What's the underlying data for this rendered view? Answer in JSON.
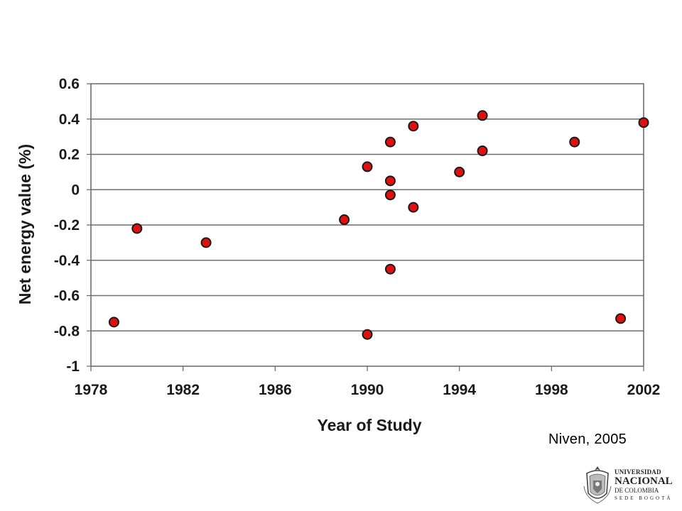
{
  "citation": "Niven, 2005",
  "logo": {
    "line1": "UNIVERSIDAD",
    "line2": "NACIONAL",
    "line3": "DE COLOMBIA",
    "line4": "SEDE BOGOTÁ"
  },
  "chart_data": {
    "type": "scatter",
    "title": "",
    "xlabel": "Year of Study",
    "ylabel": "Net energy value (%)",
    "xlim": [
      1978,
      2002
    ],
    "ylim": [
      -1,
      0.6
    ],
    "x_ticks": [
      1978,
      1982,
      1986,
      1990,
      1994,
      1998,
      2002
    ],
    "y_ticks": [
      0.6,
      0.4,
      0.2,
      0,
      -0.2,
      -0.4,
      -0.6,
      -0.8,
      -1
    ],
    "grid": "horizontal",
    "marker_color": "#e01010",
    "points": [
      {
        "x": 1979.0,
        "y": -0.75
      },
      {
        "x": 1980.0,
        "y": -0.22
      },
      {
        "x": 1983.0,
        "y": -0.3
      },
      {
        "x": 1989.0,
        "y": -0.17
      },
      {
        "x": 1990.0,
        "y": 0.13
      },
      {
        "x": 1990.0,
        "y": -0.82
      },
      {
        "x": 1991.0,
        "y": 0.27
      },
      {
        "x": 1991.0,
        "y": 0.05
      },
      {
        "x": 1991.0,
        "y": -0.03
      },
      {
        "x": 1991.0,
        "y": -0.45
      },
      {
        "x": 1992.0,
        "y": 0.36
      },
      {
        "x": 1992.0,
        "y": -0.1
      },
      {
        "x": 1994.0,
        "y": 0.1
      },
      {
        "x": 1995.0,
        "y": 0.42
      },
      {
        "x": 1995.0,
        "y": 0.22
      },
      {
        "x": 1999.0,
        "y": 0.27
      },
      {
        "x": 2001.0,
        "y": -0.73
      },
      {
        "x": 2002.0,
        "y": 0.38
      }
    ]
  }
}
